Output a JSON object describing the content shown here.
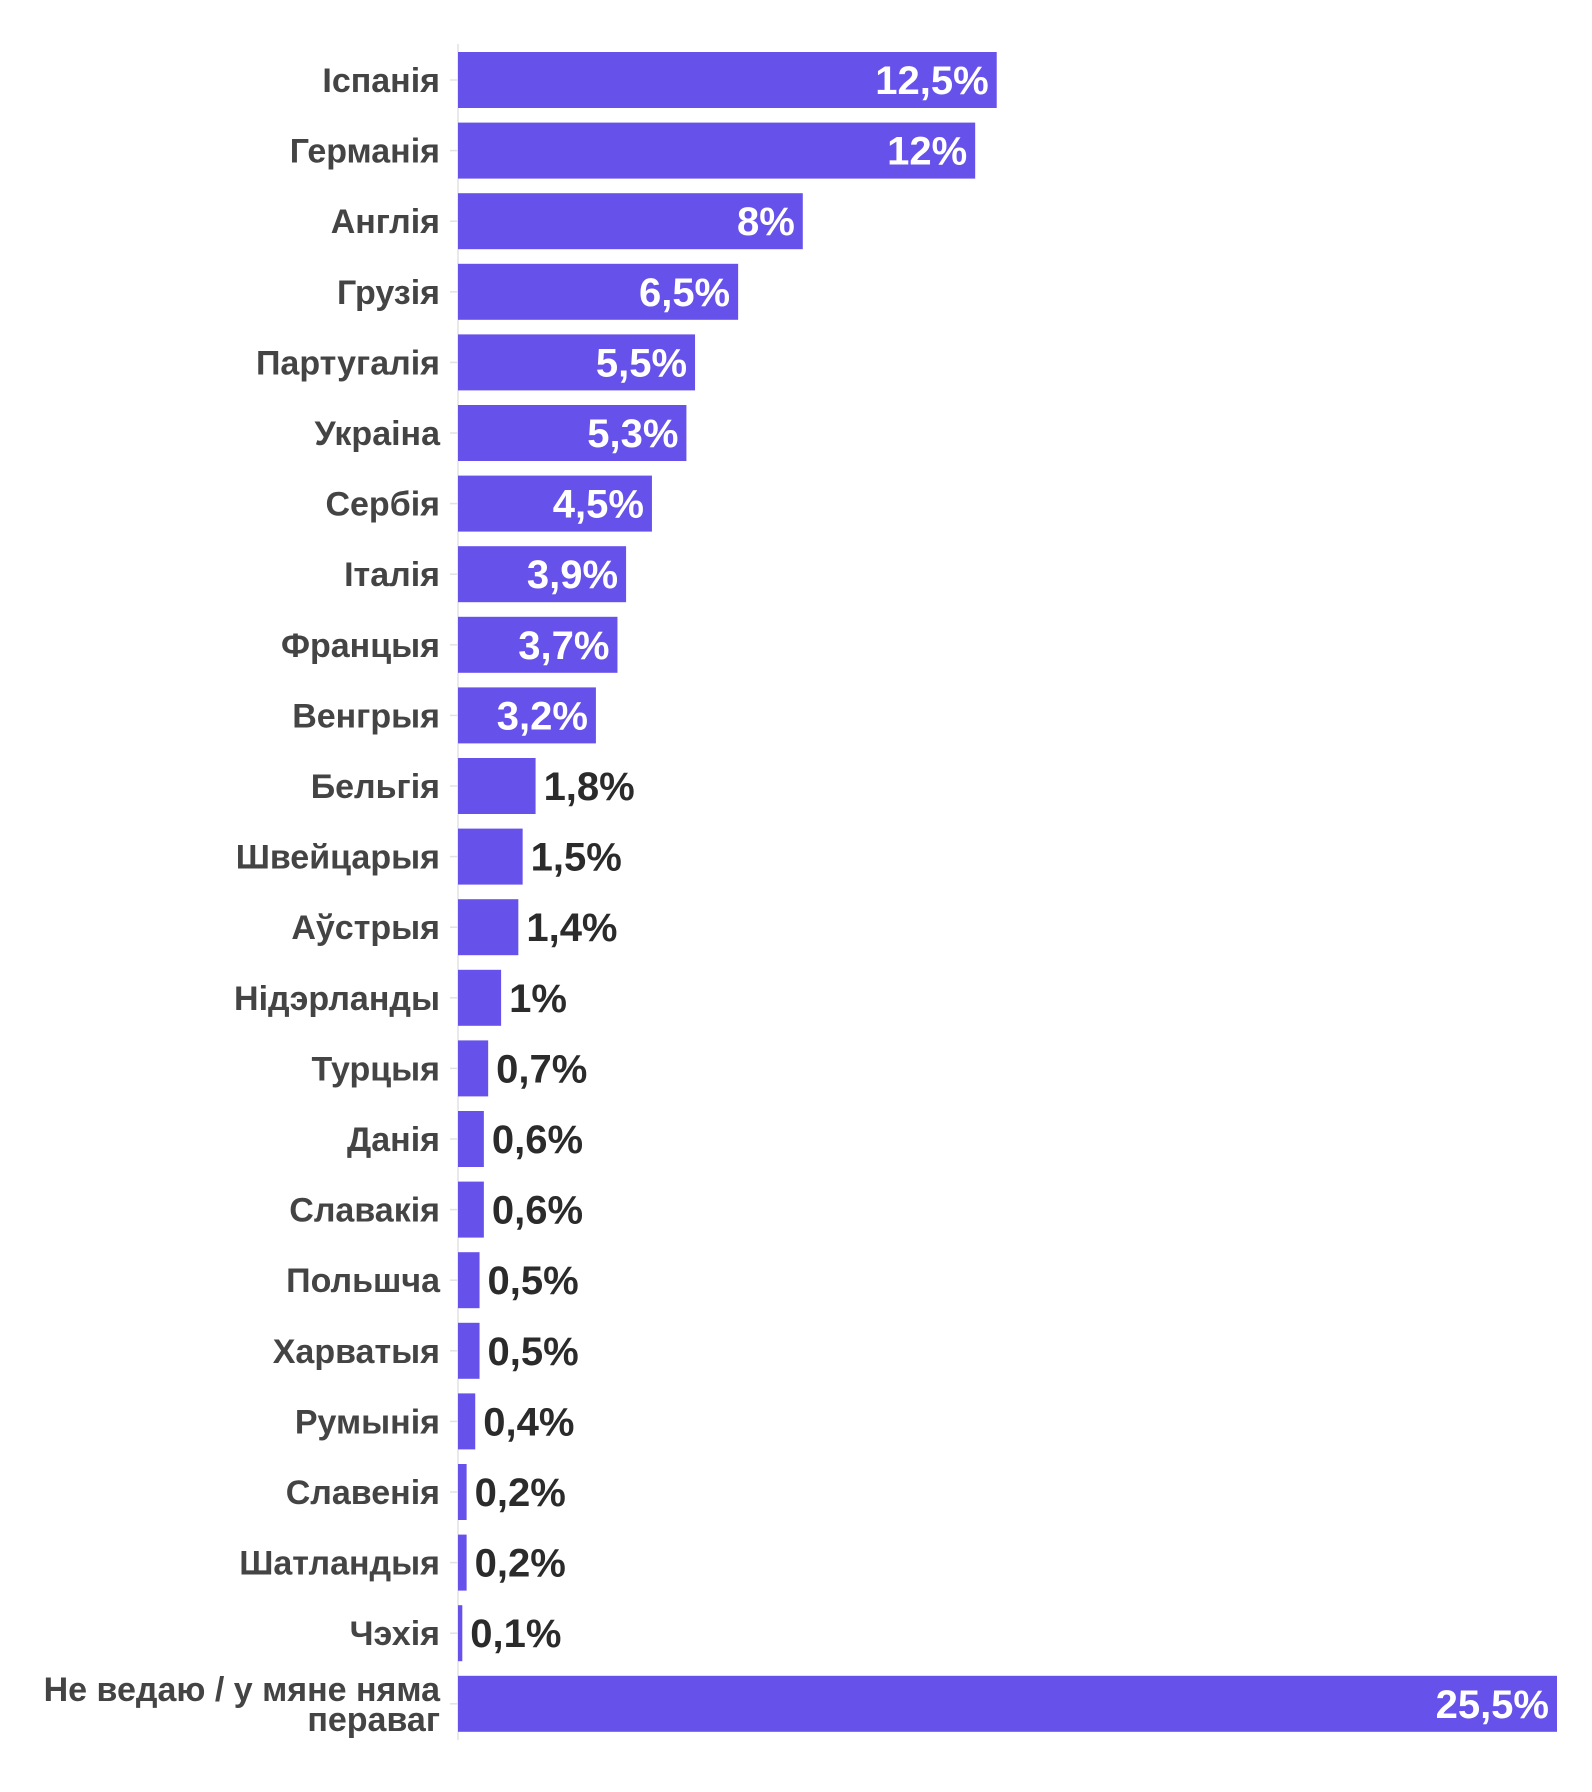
{
  "chart_data": {
    "type": "bar",
    "orientation": "horizontal",
    "title": "",
    "xlabel": "",
    "ylabel": "",
    "xlim": [
      0,
      25.5
    ],
    "grid": false,
    "legend": "none",
    "bar_color": "#6651eb",
    "label_inside_color": "#ffffff",
    "label_outside_color": "#2b2b2b",
    "categories": [
      "Іспанія",
      "Германія",
      "Англія",
      "Грузія",
      "Партугалія",
      "Украіна",
      "Сербія",
      "Італія",
      "Францыя",
      "Венгрыя",
      "Бельгія",
      "Швейцарыя",
      "Аўстрыя",
      "Нідэрланды",
      "Турцыя",
      "Данія",
      "Славакія",
      "Польшча",
      "Харватыя",
      "Румынія",
      "Славенія",
      "Шатландыя",
      "Чэхія",
      [
        "Не ведаю / у мяне няма",
        "пераваг"
      ]
    ],
    "values": [
      12.5,
      12,
      8,
      6.5,
      5.5,
      5.3,
      4.5,
      3.9,
      3.7,
      3.2,
      1.8,
      1.5,
      1.4,
      1,
      0.7,
      0.6,
      0.6,
      0.5,
      0.5,
      0.4,
      0.2,
      0.2,
      0.1,
      25.5
    ],
    "value_labels": [
      "12,5%",
      "12%",
      "8%",
      "6,5%",
      "5,5%",
      "5,3%",
      "4,5%",
      "3,9%",
      "3,7%",
      "3,2%",
      "1,8%",
      "1,5%",
      "1,4%",
      "1%",
      "0,7%",
      "0,6%",
      "0,6%",
      "0,5%",
      "0,5%",
      "0,4%",
      "0,2%",
      "0,2%",
      "0,1%",
      "25,5%"
    ]
  }
}
